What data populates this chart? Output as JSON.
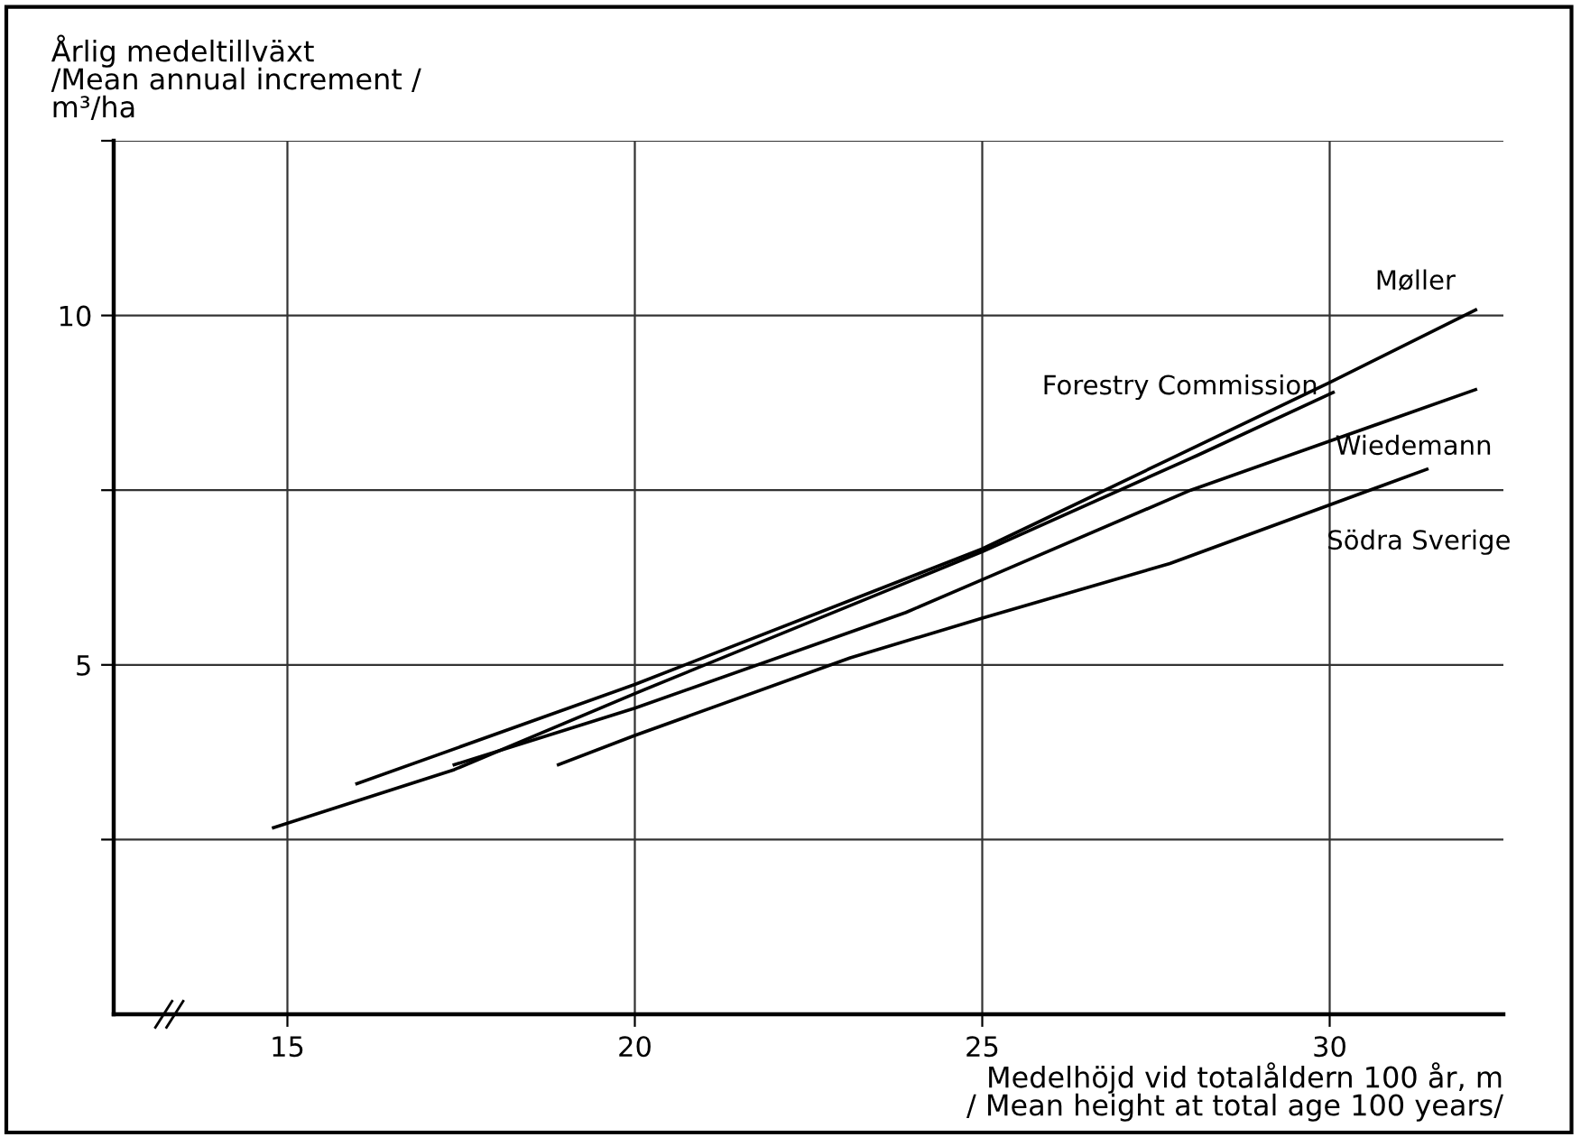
{
  "chart_data": {
    "type": "line",
    "ylabel": "Årlig medeltillväxt\n/Mean annual increment /\nm³/ha",
    "xlabel": "Medelhöjd vid totalåldern 100 år, m\n/ Mean height at total age 100 years/",
    "xlim": [
      12.5,
      32.5
    ],
    "xticks": [
      15,
      20,
      25,
      30
    ],
    "ylim": [
      0,
      12.5
    ],
    "yticks": [
      {
        "value": 2.5,
        "label": null
      },
      5,
      {
        "value": 7.5,
        "label": null
      },
      10,
      {
        "value": 12.5,
        "label": null
      }
    ],
    "grid": true,
    "legend": false,
    "marker": "none",
    "line_style": "solid",
    "series": [
      {
        "name": "Møller",
        "color": "#000000",
        "x": [
          16.0,
          20,
          25,
          30,
          32.1
        ],
        "values": [
          3.3,
          4.72,
          6.66,
          9.04,
          10.08
        ]
      },
      {
        "name": "Forestry Commission",
        "color": "#000000",
        "x": [
          14.8,
          17.4,
          20,
          25,
          28.1,
          30.05
        ],
        "values": [
          2.67,
          3.5,
          4.59,
          6.62,
          8.0,
          8.9
        ]
      },
      {
        "name": "Wiedemann",
        "color": "#000000",
        "x": [
          17.4,
          20,
          23.9,
          25,
          28.0,
          32.1
        ],
        "values": [
          3.57,
          4.38,
          5.75,
          6.22,
          7.5,
          8.94
        ]
      },
      {
        "name": "Södra Sverige",
        "color": "#000000",
        "x": [
          18.9,
          20,
          23.1,
          25,
          27.7,
          31.4
        ],
        "values": [
          3.57,
          3.99,
          5.1,
          5.67,
          6.45,
          7.8
        ]
      }
    ]
  }
}
